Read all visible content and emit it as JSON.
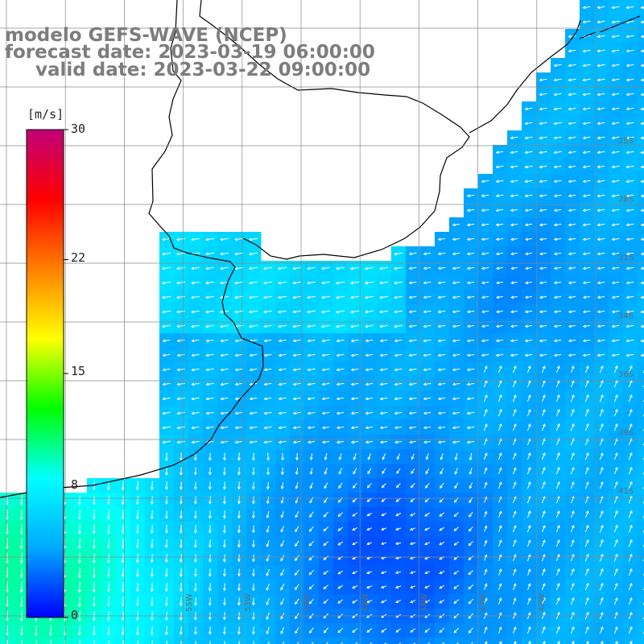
{
  "title": {
    "model": "modelo GEFS-WAVE (NCEP)",
    "forecast": "forecast date: 2023-03-19 06:00:00",
    "valid": "valid date: 2023-03-22 09:00:00"
  },
  "colorbar": {
    "unit": "[m/s]",
    "ticks": [
      {
        "value": 30,
        "label": "30"
      },
      {
        "value": 22,
        "label": "22"
      },
      {
        "value": 15,
        "label": "15"
      },
      {
        "value": 8,
        "label": "8"
      },
      {
        "value": 0,
        "label": "0"
      }
    ],
    "colors": [
      "#0000ff",
      "#00aaff",
      "#00ffff",
      "#00ff00",
      "#ffff00",
      "#ff8000",
      "#ff0000",
      "#c0007a"
    ]
  },
  "grid_labels": {
    "right": [
      "25S",
      "28S",
      "31S",
      "34S",
      "36S",
      "39S",
      "41S"
    ],
    "bottom": [
      "55W",
      "53W",
      "50W",
      "48W",
      "46W",
      "44W",
      "42W"
    ]
  },
  "colors": {
    "land": "#ffffff",
    "coast": "#000000",
    "grid": "#888888",
    "arrow": "#ffffff",
    "title": "#7d7d7d"
  }
}
